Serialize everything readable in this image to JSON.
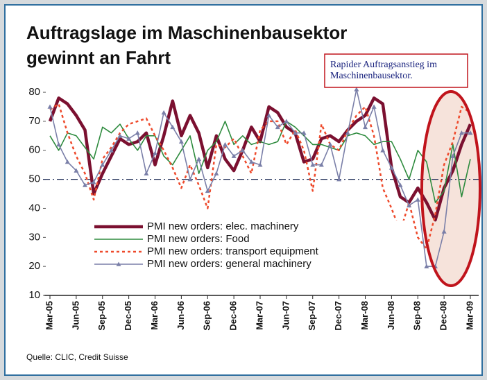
{
  "chart_data": {
    "type": "line",
    "title": [
      "Auftragslage im Maschinenbausektor",
      "gewinnt an Fahrt"
    ],
    "annotation": [
      "Rapider Auftragsanstieg im",
      "Maschinenbausektor."
    ],
    "source": "Quelle: CLIC, Credit Suisse",
    "categories": [
      "Mar-05",
      null,
      null,
      "Jun-05",
      null,
      null,
      "Sep-05",
      null,
      null,
      "Dec-05",
      null,
      null,
      "Mar-06",
      null,
      null,
      "Jun-06",
      null,
      null,
      "Sep-06",
      null,
      null,
      "Dec-06",
      null,
      null,
      "Mar-07",
      null,
      null,
      "Jun-07",
      null,
      null,
      "Sep-07",
      null,
      null,
      "Dec-07",
      null,
      null,
      "Mar-08",
      null,
      null,
      "Jun-08",
      null,
      null,
      "Sep-08",
      null,
      null,
      "Dec-08",
      null,
      null,
      "Mar-09"
    ],
    "series": [
      {
        "name": "PMI new orders: elec. machinery",
        "color": "#7b1030",
        "style": "thick",
        "values": [
          70,
          78,
          76,
          72,
          67,
          45,
          52,
          58,
          64,
          62,
          63,
          66,
          55,
          65,
          77,
          65,
          72,
          66,
          54,
          65,
          57,
          53,
          60,
          68,
          63,
          75,
          73,
          68,
          66,
          56,
          57,
          64,
          65,
          63,
          67,
          70,
          72,
          78,
          76,
          54,
          44,
          42,
          47,
          42,
          36,
          47,
          53,
          62,
          69
        ]
      },
      {
        "name": "PMI new orders: Food",
        "color": "#2e8b3e",
        "style": "solid",
        "values": [
          65,
          60,
          66,
          65,
          61,
          57,
          68,
          66,
          69,
          64,
          60,
          65,
          65,
          58,
          55,
          60,
          65,
          52,
          60,
          63,
          70,
          62,
          65,
          62,
          63,
          62,
          63,
          70,
          68,
          65,
          62,
          62,
          61,
          60,
          65,
          66,
          65,
          62,
          63,
          63,
          57,
          50,
          60,
          56,
          42,
          46,
          62,
          44,
          57
        ]
      },
      {
        "name": "PMI new orders: transport equipment",
        "color": "#ee4a2c",
        "style": "dotted",
        "values": [
          74,
          76,
          66,
          58,
          52,
          43,
          57,
          61,
          66,
          69,
          70,
          71,
          65,
          60,
          54,
          47,
          55,
          48,
          40,
          62,
          61,
          64,
          58,
          52,
          67,
          70,
          70,
          62,
          67,
          60,
          46,
          69,
          62,
          60,
          67,
          72,
          75,
          65,
          47,
          40,
          32,
          42,
          30,
          26,
          38,
          55,
          63,
          75,
          73
        ]
      },
      {
        "name": "PMI new orders: general machinery",
        "color": "#7a7fa8",
        "style": "markers",
        "values": [
          75,
          62,
          56,
          53,
          48,
          49,
          55,
          60,
          65,
          64,
          66,
          52,
          59,
          73,
          68,
          63,
          50,
          57,
          46,
          52,
          62,
          58,
          60,
          56,
          55,
          72,
          68,
          70,
          66,
          66,
          55,
          55,
          62,
          50,
          66,
          81,
          68,
          75,
          60,
          54,
          48,
          41,
          43,
          20,
          20,
          32,
          58,
          66,
          66
        ]
      }
    ],
    "ylim": [
      10,
      82
    ],
    "yticks": [
      10,
      20,
      30,
      40,
      50,
      60,
      70,
      80
    ],
    "reference_line": 50,
    "legend": "lower-center"
  }
}
